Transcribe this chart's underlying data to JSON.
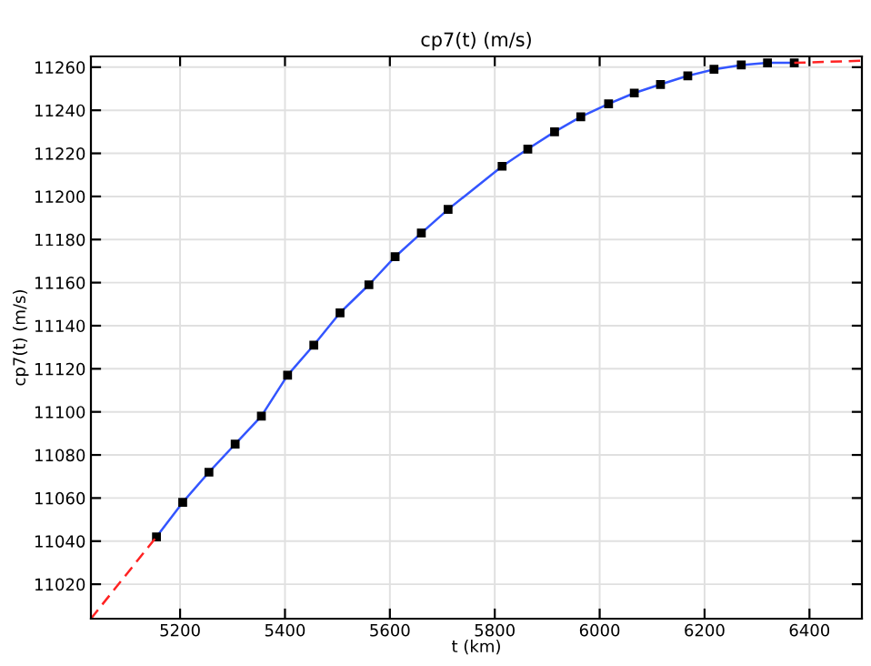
{
  "chart_data": {
    "type": "line",
    "title": "cp7(t) (m/s)",
    "xlabel": "t (km)",
    "ylabel": "cp7(t) (m/s)",
    "xlim": [
      5030,
      6500
    ],
    "ylim": [
      11004,
      11265
    ],
    "xticks": [
      5200,
      5400,
      5600,
      5800,
      6000,
      6200,
      6400
    ],
    "yticks": [
      11020,
      11040,
      11060,
      11080,
      11100,
      11120,
      11140,
      11160,
      11180,
      11200,
      11220,
      11240,
      11260
    ],
    "grid": true,
    "legend": false,
    "series": [
      {
        "color": "#3355ff",
        "marker": "square",
        "line_style": "solid",
        "x": [
          5155,
          5205,
          5255,
          5305,
          5355,
          5405,
          5455,
          5505,
          5560,
          5610,
          5660,
          5711,
          5814,
          5863,
          5914,
          5964,
          6017,
          6066,
          6116,
          6168,
          6218,
          6270,
          6320,
          6371
        ],
        "values": [
          11042,
          11058,
          11072,
          11085,
          11098,
          11117,
          11131,
          11146,
          11159,
          11172,
          11183,
          11194,
          11214,
          11222,
          11230,
          11237,
          11243,
          11248,
          11252,
          11256,
          11259,
          11261,
          11262,
          11262
        ]
      },
      {
        "color": "#ff2222",
        "marker": "none",
        "line_style": "dashed",
        "x": [
          5030,
          5155
        ],
        "values": [
          11004,
          11042
        ]
      },
      {
        "color": "#ff2222",
        "marker": "none",
        "line_style": "dashed",
        "x": [
          6371,
          6500
        ],
        "values": [
          11262,
          11263
        ]
      }
    ]
  }
}
